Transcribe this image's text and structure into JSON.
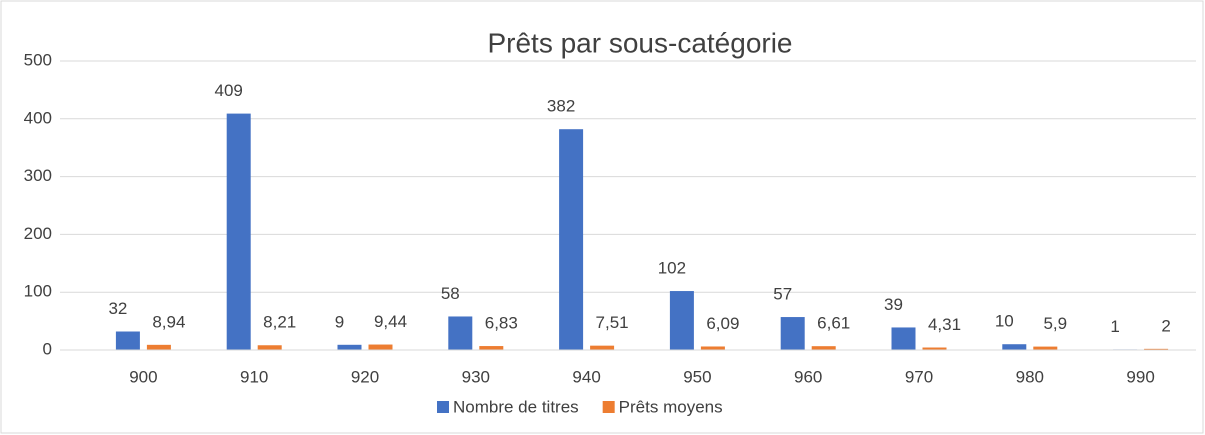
{
  "chart_data": {
    "type": "bar",
    "title": "Prêts par sous-catégorie",
    "categories": [
      "900",
      "910",
      "920",
      "930",
      "940",
      "950",
      "960",
      "970",
      "980",
      "990"
    ],
    "series": [
      {
        "name": "Nombre de titres",
        "color": "#4472c4",
        "values": [
          32,
          409,
          9,
          58,
          382,
          102,
          57,
          39,
          10,
          1
        ]
      },
      {
        "name": "Prêts moyens",
        "color": "#ed7d31",
        "values": [
          8.94,
          8.21,
          9.44,
          6.83,
          7.51,
          6.09,
          6.61,
          4.31,
          5.9,
          2
        ],
        "value_labels": [
          "8,94",
          "8,21",
          "9,44",
          "6,83",
          "7,51",
          "6,09",
          "6,61",
          "4,31",
          "5,9",
          "2"
        ]
      }
    ],
    "ylim": [
      0,
      500
    ],
    "yticks": [
      0,
      100,
      200,
      300,
      400,
      500
    ],
    "grid": true,
    "legend": "bottom"
  }
}
